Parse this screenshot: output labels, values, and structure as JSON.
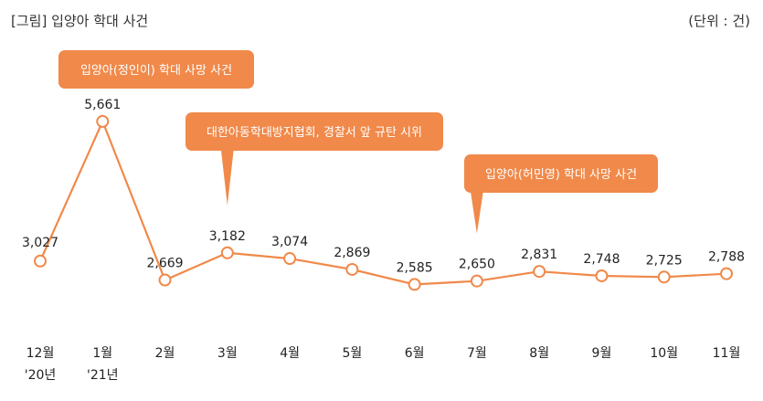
{
  "header": {
    "title": "[그림] 입양아 학대 사건",
    "unit": "(단위 : 건)"
  },
  "chart_data": {
    "type": "line",
    "title": "[그림] 입양아 학대 사건",
    "unit": "(단위 : 건)",
    "categories": [
      "12월",
      "1월",
      "2월",
      "3월",
      "4월",
      "5월",
      "6월",
      "7월",
      "8월",
      "9월",
      "10월",
      "11월"
    ],
    "year_labels": [
      "'20년",
      "'21년",
      "",
      "",
      "",
      "",
      "",
      "",
      "",
      "",
      "",
      ""
    ],
    "series": [
      {
        "name": "입양아 학대 사건",
        "values": [
          3027,
          5661,
          2669,
          3182,
          3074,
          2869,
          2585,
          2650,
          2831,
          2748,
          2725,
          2788
        ],
        "value_labels": [
          "3,027",
          "5,661",
          "2,669",
          "3,182",
          "3,074",
          "2,869",
          "2,585",
          "2,650",
          "2,831",
          "2,748",
          "2,725",
          "2,788"
        ]
      }
    ],
    "ylim": [
      1800,
      6400
    ],
    "xlabel": "",
    "ylabel": "",
    "line_color": "#f0894a",
    "callout_color": "#f0894a",
    "annotations": [
      {
        "text": "입양아(정인이) 학대 사망 사건",
        "index": 1
      },
      {
        "text": "대한아동학대방지협회, 경찰서 앞 규탄 시위",
        "index": 3
      },
      {
        "text": "입양아(허민영) 학대 사망 사건",
        "index": 7
      }
    ]
  }
}
